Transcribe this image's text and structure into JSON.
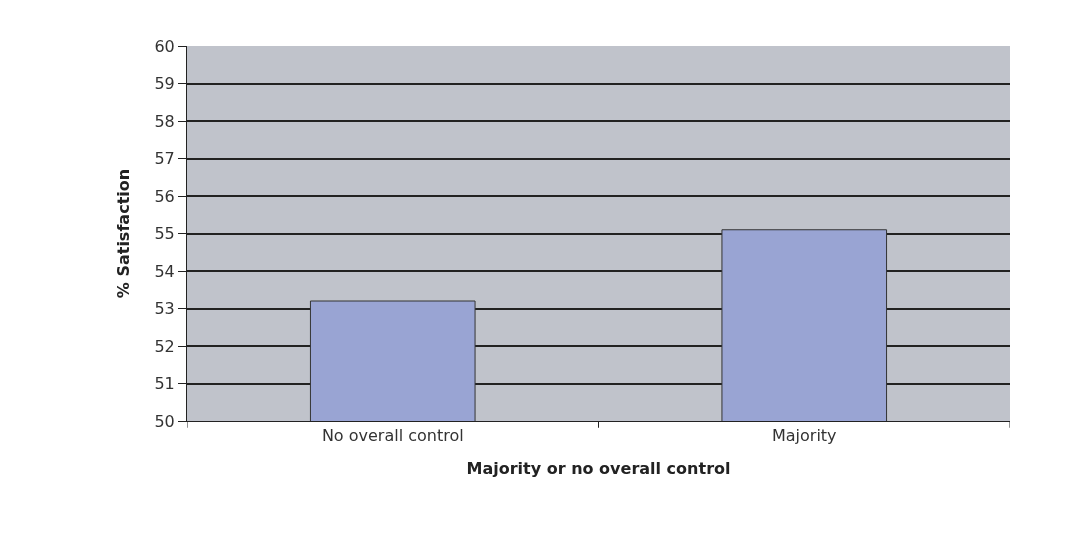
{
  "chart_data": {
    "type": "bar",
    "xlabel": "Majority or no overall control",
    "ylabel": "% Satisfaction",
    "categories": [
      "No overall control",
      "Majority"
    ],
    "values": [
      53.2,
      55.1
    ],
    "color": "#99a4d3",
    "ylim": [
      50,
      60
    ],
    "yticks": [
      50,
      51,
      52,
      53,
      54,
      55,
      56,
      57,
      58,
      59,
      60
    ],
    "grid": "y"
  }
}
